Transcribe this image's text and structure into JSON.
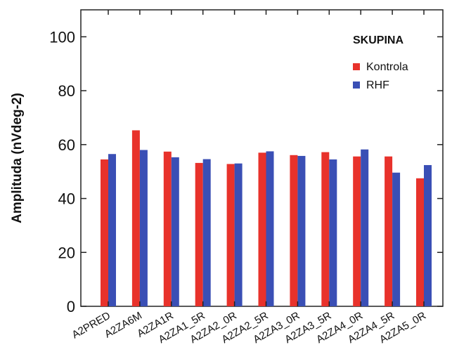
{
  "chart_data": {
    "type": "bar",
    "ylabel": "Amplituda (nVdeg-2)",
    "ylim": [
      0,
      110
    ],
    "yticks": [
      0,
      20,
      40,
      60,
      80,
      100
    ],
    "categories": [
      "A2PRED",
      "A2ZA6M",
      "A2ZA1R",
      "A2ZA1_5R",
      "A2ZA2_0R",
      "A2ZA2_5R",
      "A2ZA3_0R",
      "A2ZA3_5R",
      "A2ZA4_0R",
      "A2ZA4_5R",
      "A2ZA5_0R"
    ],
    "series": [
      {
        "name": "Kontrola",
        "color": "#e8322b",
        "values": [
          54.5,
          65.3,
          57.4,
          53.2,
          52.8,
          57.0,
          56.1,
          57.2,
          55.6,
          55.6,
          47.5
        ]
      },
      {
        "name": "RHF",
        "color": "#3a4fb5",
        "values": [
          56.5,
          58.0,
          55.3,
          54.6,
          53.0,
          57.5,
          55.8,
          54.5,
          58.2,
          49.6,
          52.4
        ]
      }
    ],
    "legend": {
      "title": "SKUPINA",
      "position": "top-right"
    },
    "grid": false
  }
}
